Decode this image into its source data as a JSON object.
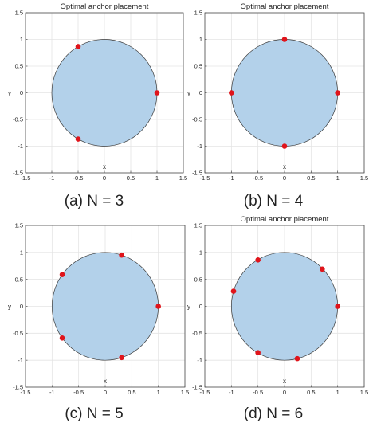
{
  "figure": {
    "captions": [
      "(a)  N = 3",
      "(b)  N = 4",
      "(c)  N = 5",
      "(d)  N = 6"
    ]
  },
  "chart_data": [
    {
      "type": "scatter",
      "title": "Optimal anchor placement",
      "xlabel": "x",
      "ylabel": "y",
      "xlim": [
        -1.5,
        1.5
      ],
      "ylim": [
        -1.5,
        1.5
      ],
      "xticks": [
        "-1.5",
        "-1",
        "-0.5",
        "0",
        "0.5",
        "1",
        "1.5"
      ],
      "yticks": [
        "-1.5",
        "-1",
        "-0.5",
        "0",
        "0.5",
        "1",
        "1.5"
      ],
      "grid": true,
      "region": {
        "shape": "unit circle",
        "center": [
          0,
          0
        ],
        "radius": 1,
        "fill": "#b3d1ea",
        "edge": "#3a3a3a"
      },
      "anchor_color": "#e0141b",
      "x": [
        1,
        -0.5,
        -0.5
      ],
      "y": [
        0,
        0.866,
        -0.866
      ]
    },
    {
      "type": "scatter",
      "title": "Optimal anchor placement",
      "xlabel": "x",
      "ylabel": "y",
      "xlim": [
        -1.5,
        1.5
      ],
      "ylim": [
        -1.5,
        1.5
      ],
      "xticks": [
        "-1.5",
        "-1",
        "-0.5",
        "0",
        "0.5",
        "1",
        "1.5"
      ],
      "yticks": [
        "-1.5",
        "-1",
        "-0.5",
        "0",
        "0.5",
        "1",
        "1.5"
      ],
      "grid": true,
      "region": {
        "shape": "unit circle",
        "center": [
          0,
          0
        ],
        "radius": 1,
        "fill": "#b3d1ea",
        "edge": "#3a3a3a"
      },
      "anchor_color": "#e0141b",
      "x": [
        1,
        0,
        -1,
        0
      ],
      "y": [
        0,
        1,
        0,
        -1
      ]
    },
    {
      "type": "scatter",
      "title": "",
      "xlabel": "x",
      "ylabel": "y",
      "xlim": [
        -1.5,
        1.5
      ],
      "ylim": [
        -1.5,
        1.5
      ],
      "xticks": [
        "-1.5",
        "-1",
        "-0.5",
        "0",
        "0.5",
        "1",
        "1.5"
      ],
      "yticks": [
        "-1.5",
        "-1",
        "-0.5",
        "0",
        "0.5",
        "1",
        "1.5"
      ],
      "grid": true,
      "region": {
        "shape": "unit circle",
        "center": [
          0,
          0
        ],
        "radius": 1,
        "fill": "#b3d1ea",
        "edge": "#3a3a3a"
      },
      "anchor_color": "#e0141b",
      "x": [
        1,
        0.309,
        -0.809,
        -0.809,
        0.309
      ],
      "y": [
        0,
        0.951,
        0.588,
        -0.588,
        -0.951
      ]
    },
    {
      "type": "scatter",
      "title": "Optimal anchor placement",
      "xlabel": "x",
      "ylabel": "y",
      "xlim": [
        -1.5,
        1.5
      ],
      "ylim": [
        -1.5,
        1.5
      ],
      "xticks": [
        "-1.5",
        "-1",
        "-0.5",
        "0",
        "0.5",
        "1",
        "1.5"
      ],
      "yticks": [
        "-1.5",
        "-1",
        "-0.5",
        "0",
        "0.5",
        "1",
        "1.5"
      ],
      "grid": true,
      "region": {
        "shape": "unit circle",
        "center": [
          0,
          0
        ],
        "radius": 1,
        "fill": "#b3d1ea",
        "edge": "#3a3a3a"
      },
      "anchor_color": "#e0141b",
      "x": [
        1,
        0.71,
        -0.5,
        -0.96,
        -0.5,
        0.24
      ],
      "y": [
        0,
        0.69,
        0.86,
        0.28,
        -0.86,
        -0.97
      ]
    }
  ]
}
